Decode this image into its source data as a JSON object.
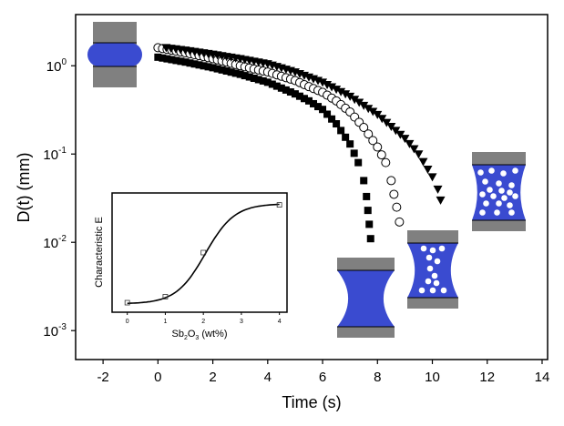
{
  "chart_data": {
    "type": "scatter",
    "xlabel": "Time (s)",
    "ylabel": "D(t) (mm)",
    "yscale": "log",
    "xlim": [
      -3,
      14.2
    ],
    "ylim": [
      0.00047,
      3.8
    ],
    "xticks": [
      "-2",
      "0",
      "2",
      "4",
      "6",
      "8",
      "10",
      "12",
      "14"
    ],
    "xtick_values": [
      -2,
      0,
      2,
      4,
      6,
      8,
      10,
      12,
      14
    ],
    "yticks": [
      {
        "base": "10",
        "exp": "0",
        "value": 1
      },
      {
        "base": "10",
        "exp": "-1",
        "value": 0.1
      },
      {
        "base": "10",
        "exp": "-2",
        "value": 0.01
      },
      {
        "base": "10",
        "exp": "-3",
        "value": 0.001
      }
    ],
    "series": [
      {
        "name": "filled squares",
        "marker": "square-filled",
        "x": [
          0,
          1,
          2,
          3,
          4,
          5,
          5.5,
          6,
          6.5,
          7,
          7.3,
          7.5,
          7.6,
          7.65,
          7.7,
          7.75
        ],
        "y": [
          1.25,
          1.1,
          0.95,
          0.8,
          0.65,
          0.48,
          0.4,
          0.32,
          0.22,
          0.13,
          0.08,
          0.05,
          0.033,
          0.023,
          0.016,
          0.011
        ]
      },
      {
        "name": "open circles",
        "marker": "circle-open",
        "x": [
          0,
          0.5,
          1,
          1.5,
          2,
          2.5,
          3,
          3.5,
          4,
          4.5,
          5,
          5.5,
          6,
          6.5,
          7,
          7.5,
          8,
          8.3,
          8.5,
          8.6,
          8.7,
          8.8
        ],
        "y": [
          1.6,
          1.5,
          1.4,
          1.3,
          1.2,
          1.1,
          1.0,
          0.92,
          0.85,
          0.76,
          0.68,
          0.58,
          0.5,
          0.4,
          0.3,
          0.2,
          0.12,
          0.08,
          0.05,
          0.035,
          0.025,
          0.017
        ]
      },
      {
        "name": "filled triangles",
        "marker": "triangle-down-filled",
        "x": [
          0.3,
          1,
          2,
          3,
          4,
          5,
          6,
          7,
          8,
          9,
          9.5,
          10,
          10.2,
          10.3
        ],
        "y": [
          1.6,
          1.5,
          1.35,
          1.2,
          1.05,
          0.85,
          0.65,
          0.45,
          0.28,
          0.15,
          0.1,
          0.055,
          0.04,
          0.03
        ]
      }
    ],
    "inset": {
      "type": "line",
      "xlabel_main": "Sb",
      "xlabel_sub1": "2",
      "xlabel_mid": "O",
      "xlabel_sub2": "3",
      "xlabel_tail": " (wt%)",
      "ylabel": "Characteristic E",
      "xlim": [
        -0.4,
        4.2
      ],
      "ylim": [
        0,
        1
      ],
      "xticks": [
        "0",
        "1",
        "2",
        "3",
        "4"
      ],
      "xtick_values": [
        0,
        1,
        2,
        3,
        4
      ],
      "points": {
        "x": [
          0,
          1,
          2,
          4
        ],
        "y": [
          0.08,
          0.13,
          0.5,
          0.9
        ]
      }
    },
    "colors": {
      "liquid": "#3a4bd0",
      "plate": "#808080"
    }
  }
}
